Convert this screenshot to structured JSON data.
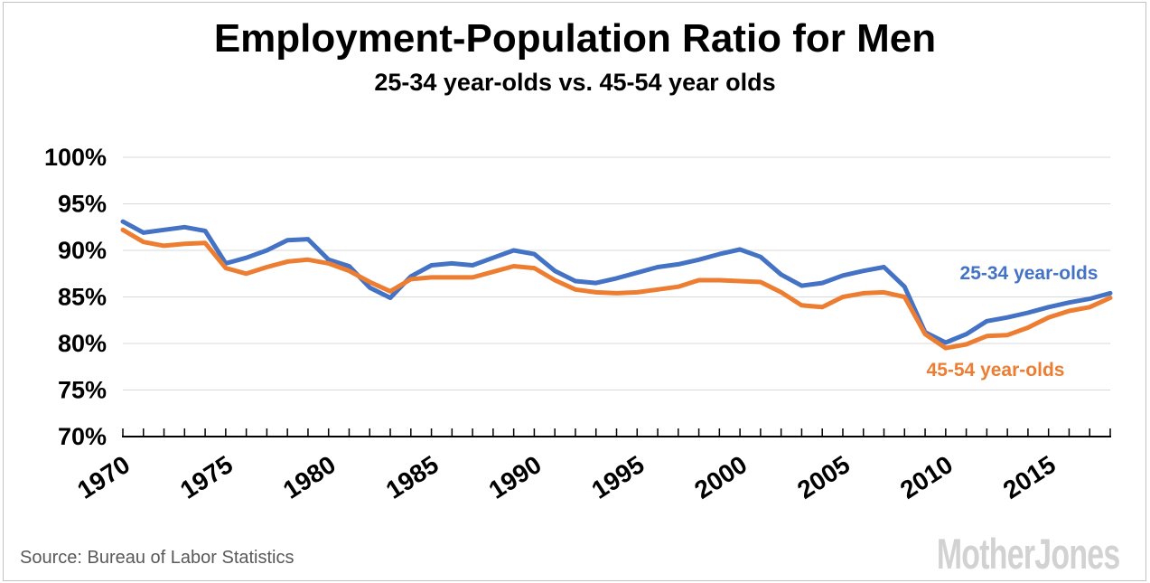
{
  "title": "Employment-Population Ratio for Men",
  "subtitle": "25-34 year-olds vs. 45-54 year olds",
  "source": "Source: Bureau of Labor Statistics",
  "branding": "MotherJones",
  "colors": {
    "series_blue": "#4472c4",
    "series_orange": "#ed7d31",
    "gridline": "#d9d9d9",
    "axis": "#000000",
    "source_text": "#595959",
    "logo_gray": "#d2d2d2"
  },
  "chart_data": {
    "type": "line",
    "title": "Employment-Population Ratio for Men",
    "subtitle": "25-34 year-olds vs. 45-54 year olds",
    "grid": true,
    "ylim": [
      70,
      100
    ],
    "y_ticks": [
      {
        "label": "100%",
        "value": 100
      },
      {
        "label": "95%",
        "value": 95
      },
      {
        "label": "90%",
        "value": 90
      },
      {
        "label": "85%",
        "value": 85
      },
      {
        "label": "80%",
        "value": 80
      },
      {
        "label": "75%",
        "value": 75
      },
      {
        "label": "70%",
        "value": 70
      }
    ],
    "x_start": 1970,
    "x_end": 2018,
    "x_tick_interval": 1,
    "x_label_interval": 5,
    "x_labels": [
      "1970",
      "1975",
      "1980",
      "1985",
      "1990",
      "1995",
      "2000",
      "2005",
      "2010",
      "2015"
    ],
    "years": [
      1970,
      1971,
      1972,
      1973,
      1974,
      1975,
      1976,
      1977,
      1978,
      1979,
      1980,
      1981,
      1982,
      1983,
      1984,
      1985,
      1986,
      1987,
      1988,
      1989,
      1990,
      1991,
      1992,
      1993,
      1994,
      1995,
      1996,
      1997,
      1998,
      1999,
      2000,
      2001,
      2002,
      2003,
      2004,
      2005,
      2006,
      2007,
      2008,
      2009,
      2010,
      2011,
      2012,
      2013,
      2014,
      2015,
      2016,
      2017,
      2018
    ],
    "series": [
      {
        "name": "25-34 year-olds",
        "color": "#4472c4",
        "values": [
          93.1,
          91.9,
          92.2,
          92.5,
          92.1,
          88.6,
          89.2,
          90.0,
          91.1,
          91.2,
          89.0,
          88.3,
          86.0,
          84.9,
          87.2,
          88.4,
          88.6,
          88.4,
          89.2,
          90.0,
          89.6,
          87.8,
          86.7,
          86.5,
          87.0,
          87.6,
          88.2,
          88.5,
          89.0,
          89.6,
          90.1,
          89.3,
          87.4,
          86.2,
          86.5,
          87.3,
          87.8,
          88.2,
          86.1,
          81.2,
          80.1,
          81.0,
          82.4,
          82.8,
          83.3,
          83.9,
          84.4,
          84.8,
          85.4
        ]
      },
      {
        "name": "45-54 year-olds",
        "color": "#ed7d31",
        "values": [
          92.2,
          90.9,
          90.5,
          90.7,
          90.8,
          88.1,
          87.5,
          88.2,
          88.8,
          89.0,
          88.6,
          87.8,
          86.6,
          85.6,
          86.9,
          87.1,
          87.1,
          87.1,
          87.7,
          88.3,
          88.1,
          86.8,
          85.8,
          85.5,
          85.4,
          85.5,
          85.8,
          86.1,
          86.8,
          86.8,
          86.7,
          86.6,
          85.5,
          84.1,
          83.9,
          85.0,
          85.4,
          85.5,
          85.0,
          81.0,
          79.5,
          79.9,
          80.8,
          80.9,
          81.7,
          82.8,
          83.5,
          83.9,
          84.9
        ]
      }
    ],
    "legend_position": "labels-on-chart"
  }
}
